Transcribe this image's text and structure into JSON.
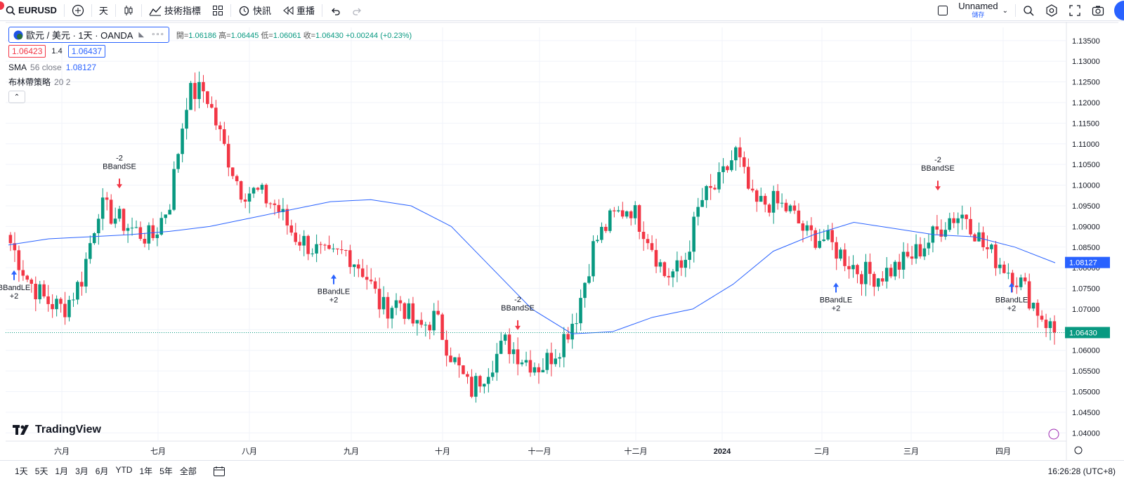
{
  "toolbar": {
    "symbol": "EURUSD",
    "interval": "天",
    "indicators_label": "技術指標",
    "alert_label": "快訊",
    "replay_label": "重播",
    "layout_name": "Unnamed",
    "save_label": "儲存"
  },
  "legend": {
    "title": "歐元 / 美元 · 1天 · OANDA",
    "open_label": "開=",
    "open": "1.06186",
    "high_label": "高=",
    "high": "1.06445",
    "low_label": "低=",
    "low": "1.06061",
    "close_label": "收=",
    "close": "1.06430",
    "change": "+0.00244 (+0.23%)",
    "sell_price": "1.06423",
    "spread": "1.4",
    "buy_price": "1.06437",
    "sma_label": "SMA",
    "sma_params": "56 close",
    "sma_value": "1.08127",
    "strategy_label": "布林帶策略",
    "strategy_params": "20 2"
  },
  "colors": {
    "up": "#089981",
    "down": "#f23645",
    "sma": "#2962ff",
    "signal": "#2962ff"
  },
  "price_axis": [
    "1.13500",
    "1.13000",
    "1.12500",
    "1.12000",
    "1.11500",
    "1.11000",
    "1.10500",
    "1.10000",
    "1.09500",
    "1.09000",
    "1.08500",
    "1.08000",
    "1.07500",
    "1.07000",
    "1.06500",
    "1.06000",
    "1.05500",
    "1.05000",
    "1.04500",
    "1.04000"
  ],
  "price_tags": {
    "sma": "1.08127",
    "last": "1.06430"
  },
  "time_axis": [
    "六月",
    "七月",
    "八月",
    "九月",
    "十月",
    "十一月",
    "十二月",
    "2024",
    "二月",
    "三月",
    "四月"
  ],
  "signals": [
    {
      "label": "BBandLE",
      "qty": "+2",
      "dir": "long"
    },
    {
      "label": "BBandSE",
      "qty": "-2",
      "dir": "short"
    },
    {
      "label": "BBandLE",
      "qty": "+2",
      "dir": "long"
    },
    {
      "label": "BBandSE",
      "qty": "-2",
      "dir": "short"
    },
    {
      "label": "BBandLE",
      "qty": "+2",
      "dir": "long"
    },
    {
      "label": "BBandSE",
      "qty": "-2",
      "dir": "short"
    },
    {
      "label": "BBandLE",
      "qty": "+2",
      "dir": "long"
    }
  ],
  "brand": "TradingView",
  "ranges": [
    "1天",
    "5天",
    "1月",
    "3月",
    "6月",
    "YTD",
    "1年",
    "5年",
    "全部"
  ],
  "clock": "16:26:28 (UTC+8)",
  "chart_data": {
    "type": "candlestick",
    "symbol": "EURUSD",
    "ylim": [
      1.0375,
      1.1365
    ],
    "closes_weekly_approx": [
      1.086,
      1.077,
      1.072,
      1.07,
      1.077,
      1.095,
      1.092,
      1.089,
      1.087,
      1.096,
      1.122,
      1.123,
      1.11,
      1.099,
      1.098,
      1.095,
      1.088,
      1.085,
      1.082,
      1.084,
      1.079,
      1.07,
      1.072,
      1.065,
      1.068,
      1.058,
      1.05,
      1.056,
      1.062,
      1.058,
      1.056,
      1.061,
      1.069,
      1.086,
      1.092,
      1.095,
      1.088,
      1.078,
      1.08,
      1.096,
      1.1,
      1.108,
      1.095,
      1.096,
      1.094,
      1.088,
      1.087,
      1.083,
      1.079,
      1.078,
      1.08,
      1.083,
      1.087,
      1.092,
      1.093,
      1.085,
      1.081,
      1.077,
      1.07,
      1.0643
    ],
    "sma56_approx": [
      1.0855,
      1.087,
      1.0875,
      1.088,
      1.0888,
      1.09,
      1.092,
      1.094,
      1.096,
      1.0965,
      1.095,
      1.09,
      1.08,
      1.07,
      1.064,
      1.0645,
      1.068,
      1.07,
      1.076,
      1.084,
      1.088,
      1.091,
      1.0895,
      1.088,
      1.0875,
      1.085,
      1.0812
    ]
  }
}
